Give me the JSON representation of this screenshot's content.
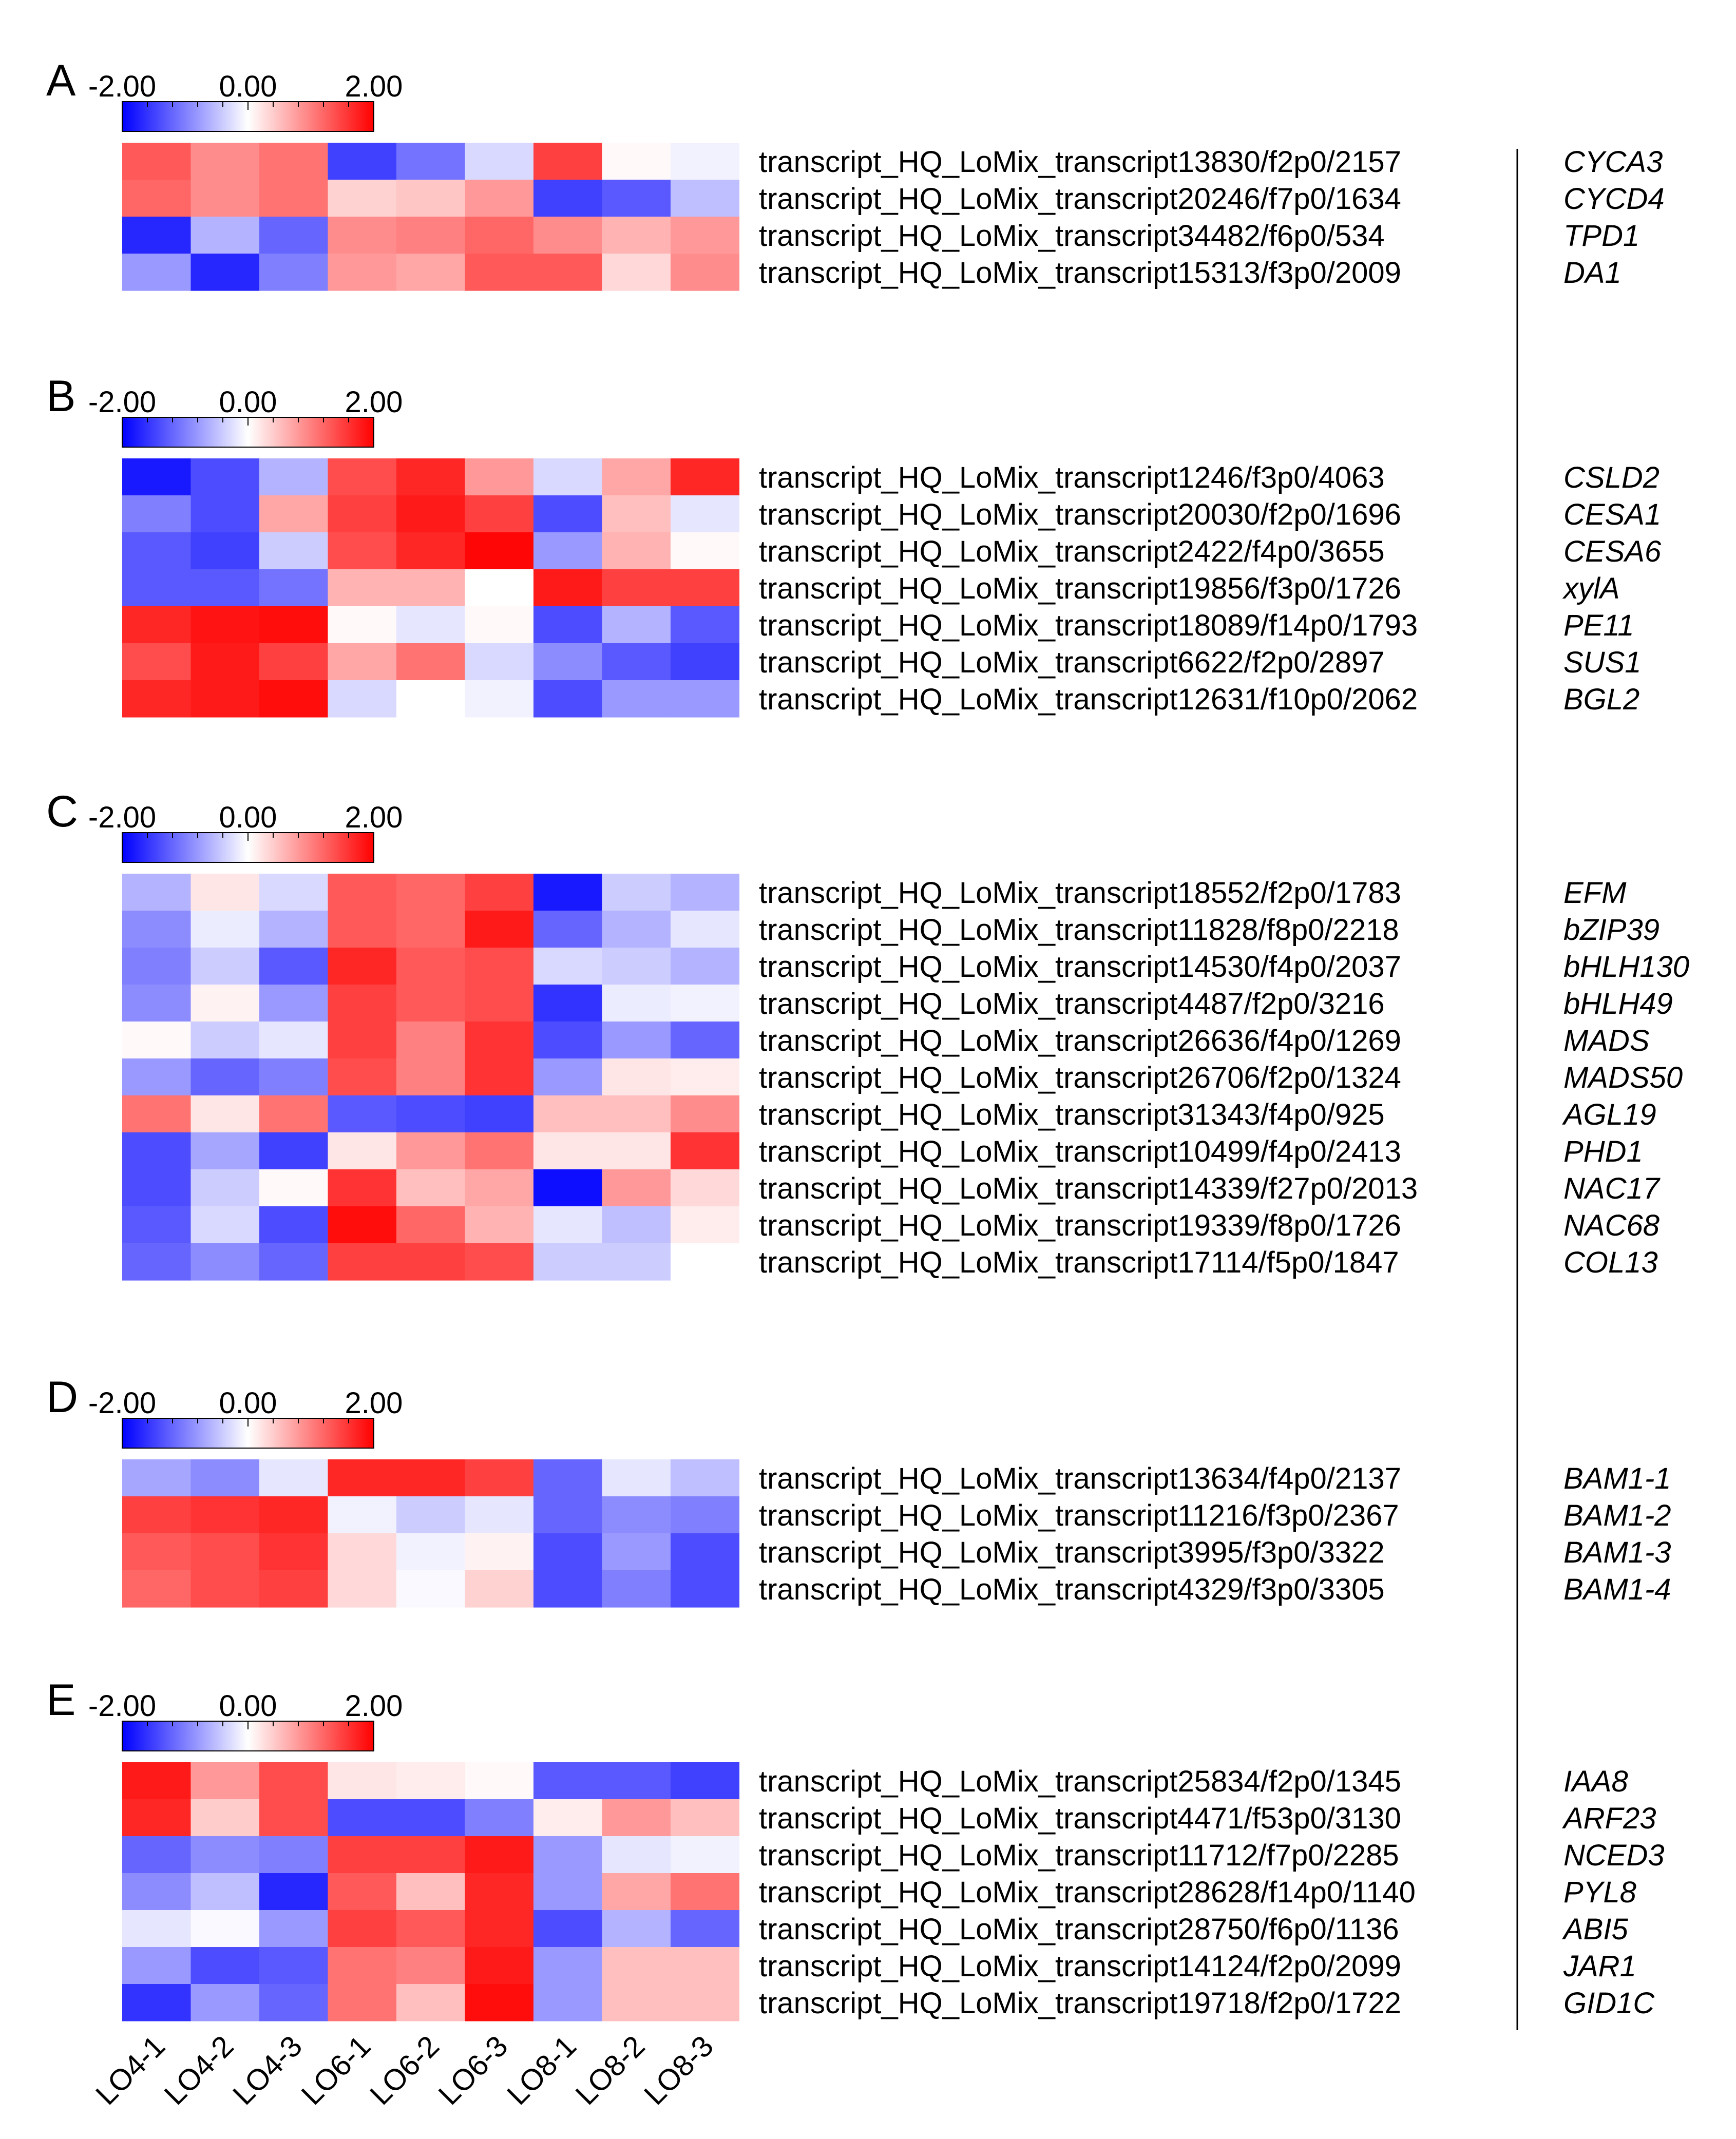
{
  "chart_data": {
    "type": "heatmap",
    "color_scale": {
      "min": -2.0,
      "mid": 0.0,
      "max": 2.0,
      "low_color": "#0000ff",
      "mid_color": "#ffffff",
      "high_color": "#ff0000",
      "tick_labels": [
        "-2.00",
        "0.00",
        "2.00"
      ]
    },
    "columns": [
      "LO4-1",
      "LO4-2",
      "LO4-3",
      "LO6-1",
      "LO6-2",
      "LO6-3",
      "LO8-1",
      "LO8-2",
      "LO8-3"
    ],
    "panels": [
      {
        "label": "A",
        "rows": [
          {
            "transcript": "transcript_HQ_LoMix_transcript13830/f2p0/2157",
            "gene": "CYCA3",
            "values": [
              1.3,
              0.9,
              1.1,
              -1.5,
              -1.1,
              -0.3,
              1.5,
              0.05,
              -0.1
            ]
          },
          {
            "transcript": "transcript_HQ_LoMix_transcript20246/f7p0/1634",
            "gene": "CYCD4",
            "values": [
              1.2,
              0.9,
              1.1,
              0.35,
              0.45,
              0.8,
              -1.5,
              -1.3,
              -0.5
            ]
          },
          {
            "transcript": "transcript_HQ_LoMix_transcript34482/f6p0/534",
            "gene": "TPD1",
            "values": [
              -1.7,
              -0.6,
              -1.2,
              0.9,
              1.0,
              1.2,
              0.9,
              0.6,
              0.8
            ]
          },
          {
            "transcript": "transcript_HQ_LoMix_transcript15313/f3p0/2009",
            "gene": "DA1",
            "values": [
              -0.8,
              -1.7,
              -1.0,
              0.8,
              0.7,
              1.3,
              1.3,
              0.3,
              0.9
            ]
          }
        ]
      },
      {
        "label": "B",
        "rows": [
          {
            "transcript": "transcript_HQ_LoMix_transcript1246/f3p0/4063",
            "gene": "CSLD2",
            "values": [
              -1.8,
              -1.4,
              -0.6,
              1.4,
              1.7,
              0.8,
              -0.3,
              0.7,
              1.7
            ]
          },
          {
            "transcript": "transcript_HQ_LoMix_transcript20030/f2p0/1696",
            "gene": "CESA1",
            "values": [
              -1.0,
              -1.4,
              0.7,
              1.5,
              1.8,
              1.5,
              -1.4,
              0.5,
              -0.2
            ]
          },
          {
            "transcript": "transcript_HQ_LoMix_transcript2422/f4p0/3655",
            "gene": "CESA6",
            "values": [
              -1.3,
              -1.5,
              -0.4,
              1.4,
              1.7,
              1.95,
              -0.8,
              0.6,
              0.05
            ]
          },
          {
            "transcript": "transcript_HQ_LoMix_transcript19856/f3p0/1726",
            "gene": "xylA",
            "values": [
              -1.3,
              -1.3,
              -1.1,
              0.6,
              0.6,
              0.0,
              1.8,
              1.5,
              1.5
            ]
          },
          {
            "transcript": "transcript_HQ_LoMix_transcript18089/f14p0/1793",
            "gene": "PE11",
            "values": [
              1.7,
              1.85,
              1.9,
              0.05,
              -0.2,
              0.05,
              -1.4,
              -0.6,
              -1.3
            ]
          },
          {
            "transcript": "transcript_HQ_LoMix_transcript6622/f2p0/2897",
            "gene": "SUS1",
            "values": [
              1.4,
              1.8,
              1.5,
              0.7,
              1.1,
              -0.3,
              -0.9,
              -1.3,
              -1.5
            ]
          },
          {
            "transcript": "transcript_HQ_LoMix_transcript12631/f10p0/2062",
            "gene": "BGL2",
            "values": [
              1.7,
              1.8,
              1.9,
              -0.3,
              0.0,
              -0.1,
              -1.4,
              -0.8,
              -0.8
            ]
          }
        ]
      },
      {
        "label": "C",
        "rows": [
          {
            "transcript": "transcript_HQ_LoMix_transcript18552/f2p0/1783",
            "gene": "EFM",
            "values": [
              -0.6,
              0.2,
              -0.3,
              1.3,
              1.2,
              1.5,
              -1.8,
              -0.4,
              -0.6
            ]
          },
          {
            "transcript": "transcript_HQ_LoMix_transcript11828/f8p0/2218",
            "gene": "bZIP39",
            "values": [
              -0.9,
              -0.15,
              -0.6,
              1.3,
              1.2,
              1.8,
              -1.2,
              -0.6,
              -0.2
            ]
          },
          {
            "transcript": "transcript_HQ_LoMix_transcript14530/f4p0/2037",
            "gene": "bHLH130",
            "values": [
              -1.0,
              -0.4,
              -1.3,
              1.7,
              1.3,
              1.4,
              -0.3,
              -0.4,
              -0.6
            ]
          },
          {
            "transcript": "transcript_HQ_LoMix_transcript4487/f2p0/3216",
            "gene": "bHLH49",
            "values": [
              -0.9,
              0.1,
              -0.8,
              1.5,
              1.3,
              1.4,
              -1.6,
              -0.15,
              -0.1
            ]
          },
          {
            "transcript": "transcript_HQ_LoMix_transcript26636/f4p0/1269",
            "gene": "MADS",
            "values": [
              0.05,
              -0.4,
              -0.2,
              1.5,
              1.0,
              1.6,
              -1.4,
              -0.8,
              -1.2
            ]
          },
          {
            "transcript": "transcript_HQ_LoMix_transcript26706/f2p0/1324",
            "gene": "MADS50",
            "values": [
              -0.8,
              -1.2,
              -1.0,
              1.4,
              1.0,
              1.6,
              -0.8,
              0.2,
              0.15
            ]
          },
          {
            "transcript": "transcript_HQ_LoMix_transcript31343/f4p0/925",
            "gene": "AGL19",
            "values": [
              1.1,
              0.2,
              1.1,
              -1.3,
              -1.4,
              -1.5,
              0.5,
              0.5,
              0.9
            ]
          },
          {
            "transcript": "transcript_HQ_LoMix_transcript10499/f4p0/2413",
            "gene": "PHD1",
            "values": [
              -1.4,
              -0.7,
              -1.5,
              0.2,
              0.8,
              1.1,
              0.2,
              0.2,
              1.6
            ]
          },
          {
            "transcript": "transcript_HQ_LoMix_transcript14339/f27p0/2013",
            "gene": "NAC17",
            "values": [
              -1.4,
              -0.4,
              0.05,
              1.6,
              0.5,
              0.7,
              -1.9,
              0.8,
              0.3
            ]
          },
          {
            "transcript": "transcript_HQ_LoMix_transcript19339/f8p0/1726",
            "gene": "NAC68",
            "values": [
              -1.3,
              -0.3,
              -1.4,
              1.9,
              1.2,
              0.6,
              -0.2,
              -0.5,
              0.15
            ]
          },
          {
            "transcript": "transcript_HQ_LoMix_transcript17114/f5p0/1847",
            "gene": "COL13",
            "values": [
              -1.2,
              -0.9,
              -1.2,
              1.5,
              1.5,
              1.4,
              -0.4,
              -0.4,
              0.0
            ]
          }
        ]
      },
      {
        "label": "D",
        "rows": [
          {
            "transcript": "transcript_HQ_LoMix_transcript13634/f4p0/2137",
            "gene": "BAM1-1",
            "values": [
              -0.7,
              -0.9,
              -0.2,
              1.7,
              1.7,
              1.5,
              -1.2,
              -0.2,
              -0.5
            ]
          },
          {
            "transcript": "transcript_HQ_LoMix_transcript11216/f3p0/2367",
            "gene": "BAM1-2",
            "values": [
              1.5,
              1.6,
              1.7,
              -0.1,
              -0.4,
              -0.2,
              -1.2,
              -0.9,
              -1.0
            ]
          },
          {
            "transcript": "transcript_HQ_LoMix_transcript3995/f3p0/3322",
            "gene": "BAM1-3",
            "values": [
              1.3,
              1.4,
              1.6,
              0.3,
              -0.1,
              0.1,
              -1.4,
              -0.8,
              -1.4
            ]
          },
          {
            "transcript": "transcript_HQ_LoMix_transcript4329/f3p0/3305",
            "gene": "BAM1-4",
            "values": [
              1.2,
              1.4,
              1.5,
              0.3,
              -0.05,
              0.35,
              -1.4,
              -1.0,
              -1.4
            ]
          }
        ]
      },
      {
        "label": "E",
        "rows": [
          {
            "transcript": "transcript_HQ_LoMix_transcript25834/f2p0/1345",
            "gene": "IAA8",
            "values": [
              1.8,
              0.8,
              1.4,
              0.2,
              0.15,
              0.05,
              -1.3,
              -1.3,
              -1.5
            ]
          },
          {
            "transcript": "transcript_HQ_LoMix_transcript4471/f53p0/3130",
            "gene": "ARF23",
            "values": [
              1.7,
              0.4,
              1.4,
              -1.4,
              -1.4,
              -1.0,
              0.15,
              0.8,
              0.5
            ]
          },
          {
            "transcript": "transcript_HQ_LoMix_transcript11712/f7p0/2285",
            "gene": "NCED3",
            "values": [
              -1.2,
              -0.9,
              -1.0,
              1.5,
              1.5,
              1.8,
              -0.8,
              -0.2,
              -0.1
            ]
          },
          {
            "transcript": "transcript_HQ_LoMix_transcript28628/f14p0/1140",
            "gene": "PYL8",
            "values": [
              -0.9,
              -0.5,
              -1.7,
              1.3,
              0.5,
              1.7,
              -0.8,
              0.7,
              1.1
            ]
          },
          {
            "transcript": "transcript_HQ_LoMix_transcript28750/f6p0/1136",
            "gene": "ABI5",
            "values": [
              -0.2,
              -0.05,
              -0.8,
              1.5,
              1.3,
              1.7,
              -1.4,
              -0.6,
              -1.2
            ]
          },
          {
            "transcript": "transcript_HQ_LoMix_transcript14124/f2p0/2099",
            "gene": "JAR1",
            "values": [
              -0.8,
              -1.4,
              -1.3,
              1.1,
              1.0,
              1.8,
              -0.8,
              0.5,
              0.5
            ]
          },
          {
            "transcript": "transcript_HQ_LoMix_transcript19718/f2p0/1722",
            "gene": "GID1C",
            "values": [
              -1.6,
              -0.8,
              -1.2,
              1.1,
              0.5,
              1.9,
              -0.8,
              0.5,
              0.5
            ]
          }
        ]
      }
    ]
  }
}
